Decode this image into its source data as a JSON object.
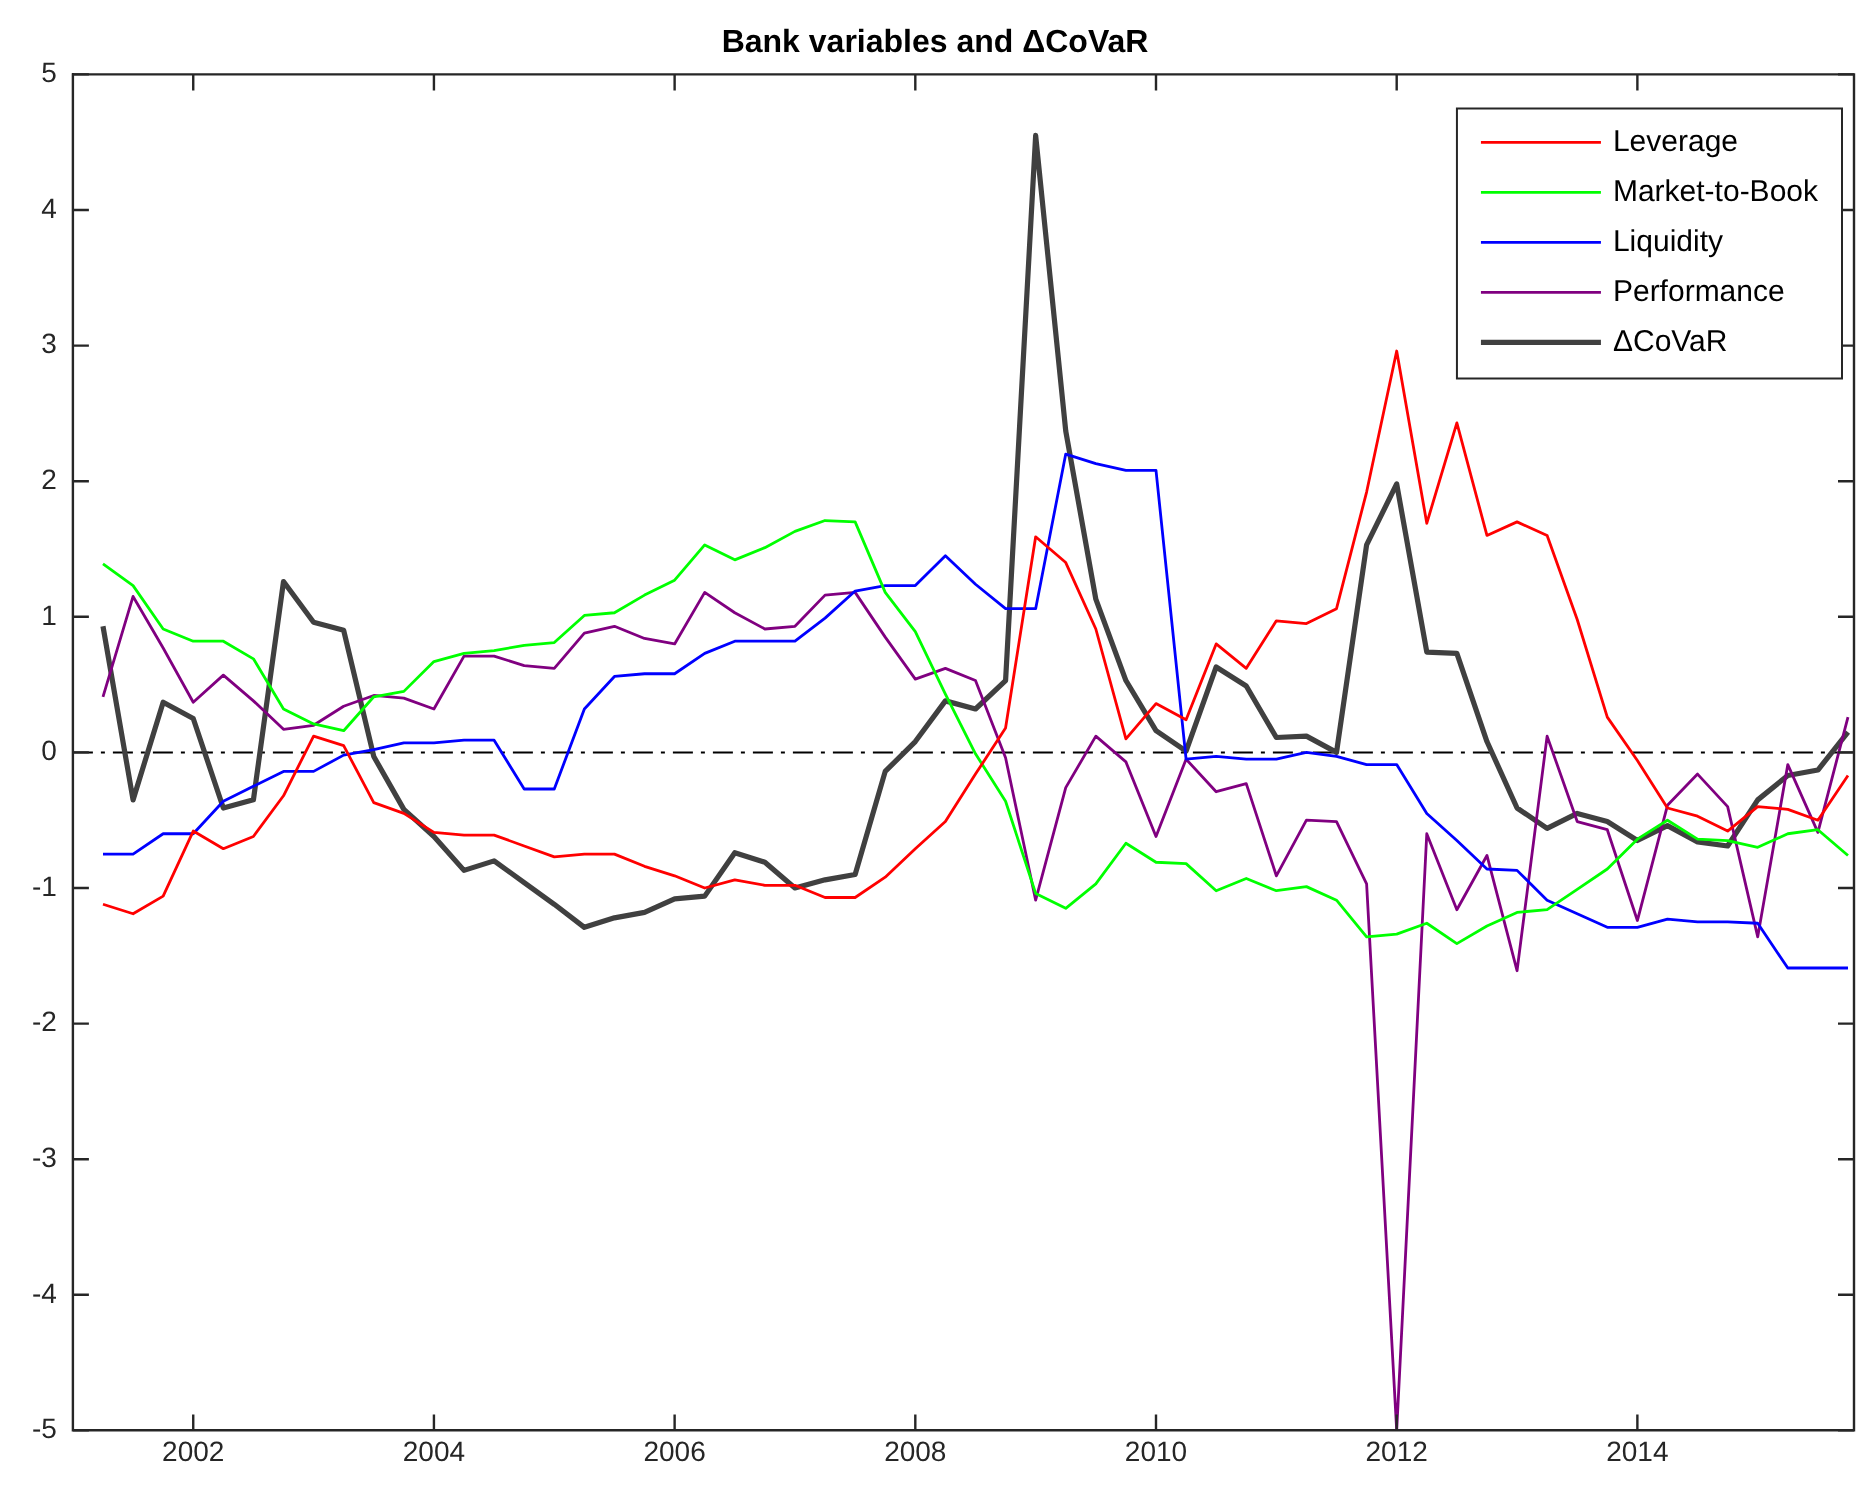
{
  "chart_data": {
    "type": "line",
    "title": "Bank variables and ΔCoVaR",
    "x": [
      2001.25,
      2001.5,
      2001.75,
      2002,
      2002.25,
      2002.5,
      2002.75,
      2003,
      2003.25,
      2003.5,
      2003.75,
      2004,
      2004.25,
      2004.5,
      2004.75,
      2005,
      2005.25,
      2005.5,
      2005.75,
      2006,
      2006.25,
      2006.5,
      2006.75,
      2007,
      2007.25,
      2007.5,
      2007.75,
      2008,
      2008.25,
      2008.5,
      2008.75,
      2009,
      2009.25,
      2009.5,
      2009.75,
      2010,
      2010.25,
      2010.5,
      2010.75,
      2011,
      2011.25,
      2011.5,
      2011.75,
      2012,
      2012.25,
      2012.5,
      2012.75,
      2013,
      2013.25,
      2013.5,
      2013.75,
      2014,
      2014.25,
      2014.5,
      2014.75,
      2015,
      2015.25,
      2015.5,
      2015.75
    ],
    "series": [
      {
        "name": "Leverage",
        "color": "#ff0000",
        "values": [
          -1.12,
          -1.19,
          -1.06,
          -0.58,
          -0.71,
          -0.62,
          -0.32,
          0.12,
          0.05,
          -0.37,
          -0.45,
          -0.59,
          -0.61,
          -0.61,
          -0.69,
          -0.77,
          -0.75,
          -0.75,
          -0.84,
          -0.91,
          -1.0,
          -0.94,
          -0.98,
          -0.98,
          -1.07,
          -1.07,
          -0.92,
          -0.71,
          -0.51,
          -0.16,
          0.18,
          1.59,
          1.4,
          0.91,
          0.1,
          0.36,
          0.24,
          0.8,
          0.62,
          0.97,
          0.95,
          1.06,
          1.92,
          2.96,
          1.69,
          2.43,
          1.6,
          1.7,
          1.6,
          0.98,
          0.26,
          -0.06,
          -0.41,
          -0.47,
          -0.58,
          -0.4,
          -0.42,
          -0.5,
          -0.17
        ]
      },
      {
        "name": "Market-to-Book",
        "color": "#00ff00",
        "values": [
          1.39,
          1.23,
          0.91,
          0.82,
          0.82,
          0.69,
          0.32,
          0.21,
          0.16,
          0.41,
          0.45,
          0.67,
          0.73,
          0.75,
          0.79,
          0.81,
          1.01,
          1.03,
          1.16,
          1.27,
          1.53,
          1.42,
          1.51,
          1.63,
          1.71,
          1.7,
          1.18,
          0.89,
          0.43,
          -0.01,
          -0.36,
          -1.04,
          -1.15,
          -0.97,
          -0.67,
          -0.81,
          -0.82,
          -1.02,
          -0.93,
          -1.02,
          -0.99,
          -1.09,
          -1.36,
          -1.34,
          -1.26,
          -1.41,
          -1.28,
          -1.18,
          -1.16,
          -1.01,
          -0.86,
          -0.64,
          -0.5,
          -0.64,
          -0.65,
          -0.7,
          -0.6,
          -0.57,
          -0.76
        ]
      },
      {
        "name": "Liquidity",
        "color": "#0000ff",
        "values": [
          -0.75,
          -0.75,
          -0.6,
          -0.6,
          -0.36,
          -0.25,
          -0.14,
          -0.14,
          -0.02,
          0.02,
          0.07,
          0.07,
          0.09,
          0.09,
          -0.27,
          -0.27,
          0.32,
          0.56,
          0.58,
          0.58,
          0.73,
          0.82,
          0.82,
          0.82,
          0.99,
          1.19,
          1.23,
          1.23,
          1.45,
          1.24,
          1.06,
          1.06,
          2.2,
          2.13,
          2.08,
          2.08,
          -0.05,
          -0.03,
          -0.05,
          -0.05,
          0.0,
          -0.03,
          -0.09,
          -0.09,
          -0.45,
          -0.65,
          -0.86,
          -0.87,
          -1.09,
          -1.19,
          -1.29,
          -1.29,
          -1.23,
          -1.25,
          -1.25,
          -1.26,
          -1.59,
          -1.59,
          -1.59
        ]
      },
      {
        "name": "Performance",
        "color": "#800080",
        "values": [
          0.41,
          1.15,
          0.77,
          0.37,
          0.57,
          0.38,
          0.17,
          0.2,
          0.34,
          0.42,
          0.4,
          0.32,
          0.71,
          0.71,
          0.64,
          0.62,
          0.88,
          0.93,
          0.84,
          0.8,
          1.18,
          1.03,
          0.91,
          0.93,
          1.16,
          1.18,
          0.85,
          0.54,
          0.62,
          0.53,
          -0.04,
          -1.09,
          -0.26,
          0.12,
          -0.07,
          -0.62,
          -0.05,
          -0.29,
          -0.23,
          -0.91,
          -0.5,
          -0.51,
          -0.97,
          -5.0,
          -0.6,
          -1.16,
          -0.76,
          -1.61,
          0.12,
          -0.51,
          -0.57,
          -1.24,
          -0.39,
          -0.16,
          -0.4,
          -1.36,
          -0.09,
          -0.59,
          0.26
        ]
      },
      {
        "name": "ΔCoVaR",
        "color": "#404040",
        "values": [
          0.93,
          -0.35,
          0.37,
          0.25,
          -0.41,
          -0.35,
          1.26,
          0.96,
          0.9,
          -0.03,
          -0.42,
          -0.62,
          -0.87,
          -0.8,
          -0.96,
          -1.12,
          -1.29,
          -1.22,
          -1.18,
          -1.08,
          -1.06,
          -0.74,
          -0.81,
          -1.0,
          -0.94,
          -0.9,
          -0.14,
          0.08,
          0.38,
          0.32,
          0.53,
          4.55,
          2.37,
          1.13,
          0.53,
          0.16,
          0.01,
          0.63,
          0.49,
          0.11,
          0.12,
          0.0,
          1.53,
          1.98,
          0.74,
          0.73,
          0.08,
          -0.41,
          -0.56,
          -0.45,
          -0.51,
          -0.65,
          -0.54,
          -0.66,
          -0.69,
          -0.35,
          -0.17,
          -0.13,
          0.15
        ]
      }
    ],
    "xlim": [
      2001,
      2015.8
    ],
    "xticks": [
      2002,
      2004,
      2006,
      2008,
      2010,
      2012,
      2014
    ],
    "ylim": [
      -5,
      5
    ],
    "yticks": [
      -5,
      -4,
      -3,
      -2,
      -1,
      0,
      1,
      2,
      3,
      4,
      5
    ],
    "ref_lines": [
      {
        "axis": "y",
        "value": 0,
        "color": "#000000",
        "line_style": "dashed"
      }
    ],
    "legend": "top right",
    "grid": false,
    "marker": "none",
    "line_style": "solid"
  }
}
